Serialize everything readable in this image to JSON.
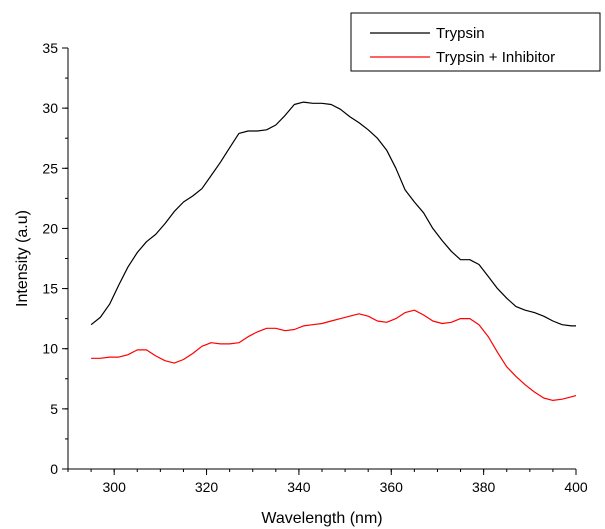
{
  "chart_data": {
    "type": "line",
    "xlabel": "Wavelength (nm)",
    "ylabel": "Intensity (a.u)",
    "xlim": [
      290,
      400
    ],
    "ylim": [
      0,
      35
    ],
    "x_ticks": [
      300,
      320,
      340,
      360,
      380,
      400
    ],
    "y_ticks": [
      0,
      5,
      10,
      15,
      20,
      25,
      30,
      35
    ],
    "x_minor_step": 5,
    "y_minor_step": 2.5,
    "grid": false,
    "legend_position": "top-right",
    "series": [
      {
        "name": "Trypsin",
        "color": "#000000",
        "x": [
          295,
          297,
          299,
          301,
          303,
          305,
          307,
          309,
          311,
          313,
          315,
          317,
          319,
          321,
          323,
          325,
          327,
          329,
          331,
          333,
          335,
          337,
          339,
          341,
          343,
          345,
          347,
          349,
          351,
          353,
          355,
          357,
          359,
          361,
          363,
          365,
          367,
          369,
          371,
          373,
          375,
          377,
          379,
          381,
          383,
          385,
          387,
          389,
          391,
          393,
          395,
          397,
          399,
          400
        ],
        "y": [
          12.0,
          12.6,
          13.7,
          15.3,
          16.8,
          18.0,
          18.9,
          19.5,
          20.4,
          21.4,
          22.2,
          22.7,
          23.3,
          24.4,
          25.5,
          26.7,
          27.9,
          28.1,
          28.1,
          28.2,
          28.6,
          29.4,
          30.3,
          30.5,
          30.4,
          30.4,
          30.3,
          29.9,
          29.3,
          28.8,
          28.2,
          27.5,
          26.5,
          25.0,
          23.2,
          22.2,
          21.3,
          20.0,
          19.0,
          18.1,
          17.4,
          17.4,
          17.0,
          16.0,
          15.0,
          14.2,
          13.5,
          13.2,
          13.0,
          12.7,
          12.3,
          12.0,
          11.9,
          11.9
        ]
      },
      {
        "name": "Trypsin + Inhibitor",
        "color": "#ff0000",
        "x": [
          295,
          297,
          299,
          301,
          303,
          305,
          307,
          309,
          311,
          313,
          315,
          317,
          319,
          321,
          323,
          325,
          327,
          329,
          331,
          333,
          335,
          337,
          339,
          341,
          343,
          345,
          347,
          349,
          351,
          353,
          355,
          357,
          359,
          361,
          363,
          365,
          367,
          369,
          371,
          373,
          375,
          377,
          379,
          381,
          383,
          385,
          387,
          389,
          391,
          393,
          395,
          397,
          399,
          400
        ],
        "y": [
          9.2,
          9.2,
          9.3,
          9.3,
          9.5,
          9.9,
          9.9,
          9.4,
          9.0,
          8.8,
          9.1,
          9.6,
          10.2,
          10.5,
          10.4,
          10.4,
          10.5,
          11.0,
          11.4,
          11.7,
          11.7,
          11.5,
          11.6,
          11.9,
          12.0,
          12.1,
          12.3,
          12.5,
          12.7,
          12.9,
          12.7,
          12.3,
          12.2,
          12.5,
          13.0,
          13.2,
          12.8,
          12.3,
          12.1,
          12.2,
          12.5,
          12.5,
          12.0,
          11.0,
          9.7,
          8.5,
          7.7,
          7.0,
          6.4,
          5.9,
          5.7,
          5.8,
          6.0,
          6.1
        ]
      }
    ]
  }
}
